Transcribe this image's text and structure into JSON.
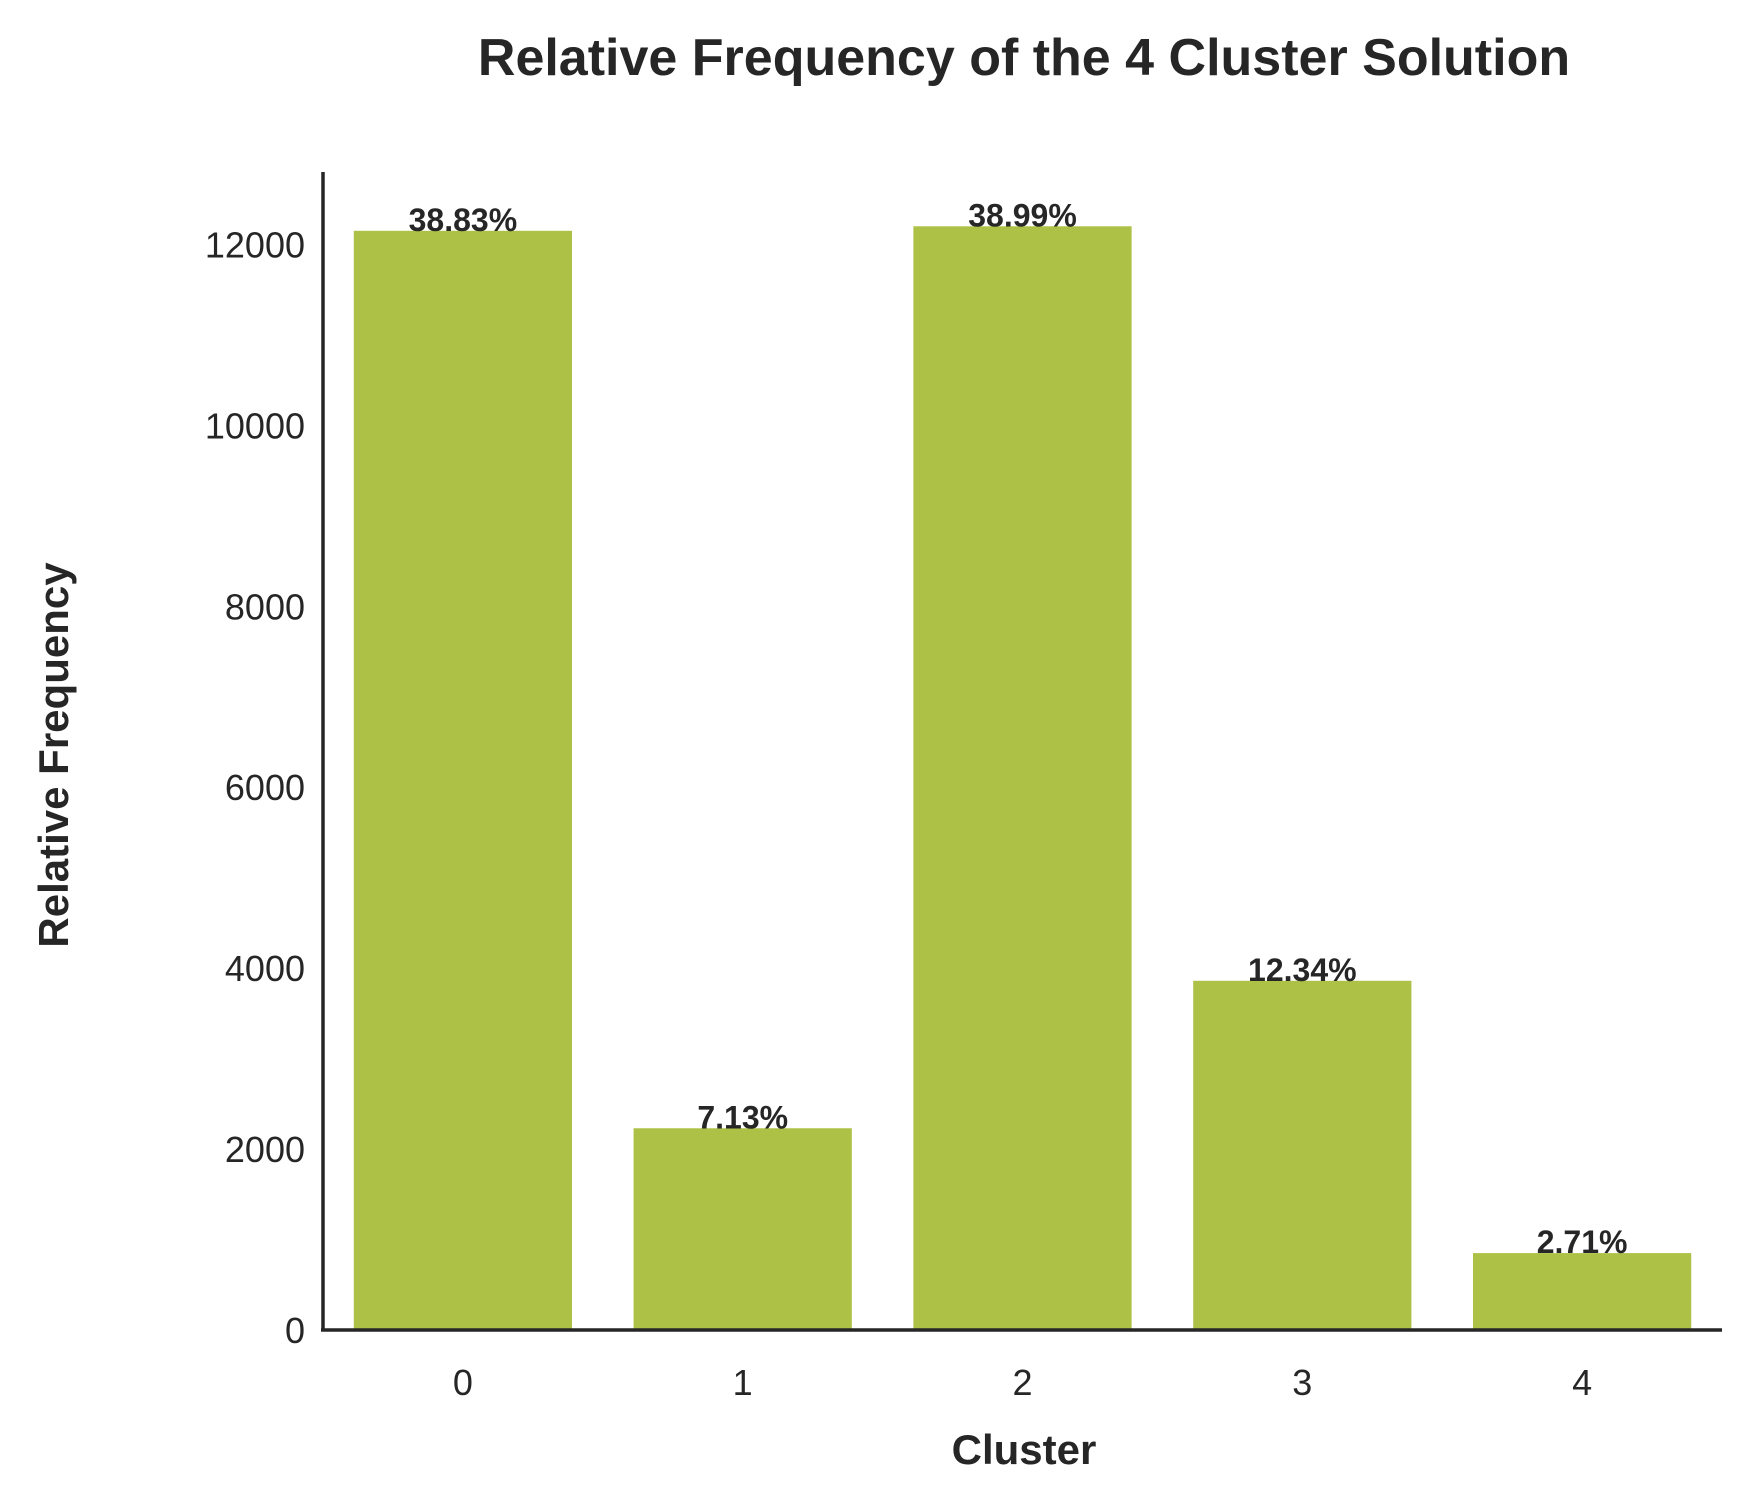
{
  "chart_data": {
    "type": "bar",
    "title": "Relative Frequency of the 4 Cluster Solution",
    "xlabel": "Cluster",
    "ylabel": "Relative Frequency",
    "categories": [
      "0",
      "1",
      "2",
      "3",
      "4"
    ],
    "values": [
      12150,
      2230,
      12200,
      3860,
      850
    ],
    "data_labels": [
      "38.83%",
      "7.13%",
      "38.99%",
      "12.34%",
      "2.71%"
    ],
    "yticks": [
      0,
      2000,
      4000,
      6000,
      8000,
      10000,
      12000
    ],
    "ytick_labels": [
      "0",
      "2000",
      "4000",
      "6000",
      "8000",
      "10000",
      "12000"
    ],
    "ylim": [
      0,
      12800
    ],
    "grid": false,
    "legend": "none",
    "bar_color": "#aec147",
    "axis_color": "#262626"
  }
}
